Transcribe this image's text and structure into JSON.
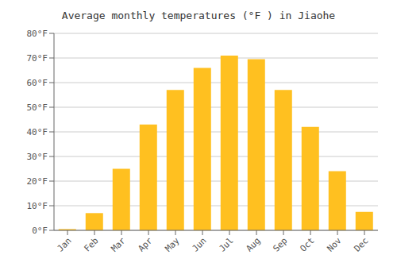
{
  "chart_data": {
    "type": "bar",
    "title": "Average monthly temperatures (°F ) in Jiaohe",
    "categories": [
      "Jan",
      "Feb",
      "Mar",
      "Apr",
      "May",
      "Jun",
      "Jul",
      "Aug",
      "Sep",
      "Oct",
      "Nov",
      "Dec"
    ],
    "values": [
      0.5,
      7,
      25,
      43,
      57,
      66,
      71,
      69.5,
      57,
      42,
      24,
      7.5
    ],
    "color": "#FFC020",
    "ylim": [
      0,
      80
    ],
    "yticks": [
      {
        "value": 0,
        "label": "0°F"
      },
      {
        "value": 10,
        "label": "10°F"
      },
      {
        "value": 20,
        "label": "20°F"
      },
      {
        "value": 30,
        "label": "30°F"
      },
      {
        "value": 40,
        "label": "40°F"
      },
      {
        "value": 50,
        "label": "50°F"
      },
      {
        "value": 60,
        "label": "60°F"
      },
      {
        "value": 70,
        "label": "70°F"
      },
      {
        "value": 80,
        "label": "80°F"
      }
    ],
    "grid": true
  }
}
